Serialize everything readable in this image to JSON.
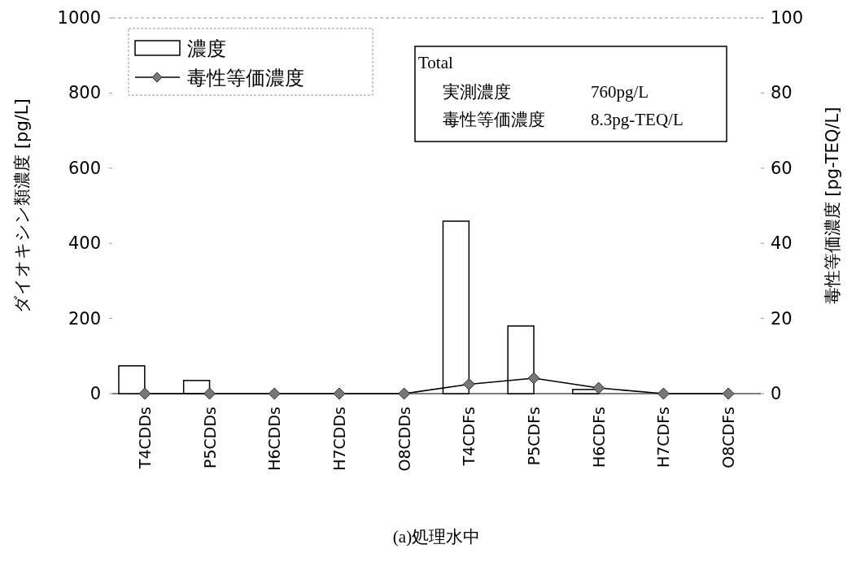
{
  "chart_data": {
    "type": "bar",
    "xlabel": "(a)処理水中",
    "ylabel": "ダイオキシン類濃度 [pg/L]",
    "y2label": "毒性等価濃度 [pg-TEQ/L]",
    "categories": [
      "T4CDDs",
      "P5CDDs",
      "H6CDDs",
      "H7CDDs",
      "O8CDDs",
      "T4CDFs",
      "P5CDFs",
      "H6CDFs",
      "H7CDFs",
      "O8CDFs"
    ],
    "series": [
      {
        "name": "濃度",
        "color": "#ffffff",
        "values": [
          74,
          35,
          0,
          0,
          0,
          459,
          180,
          11,
          0,
          0
        ]
      },
      {
        "name": "毒性等価濃度",
        "type": "line",
        "axis": "y2",
        "color": "#000000",
        "marker": "diamond",
        "values": [
          0,
          0,
          0,
          0,
          0,
          2.5,
          4.1,
          1.5,
          0,
          0
        ]
      }
    ],
    "ylim": [
      0,
      1000
    ],
    "yticks": [
      0,
      200,
      400,
      600,
      800,
      1000
    ],
    "y2lim": [
      0,
      100
    ],
    "y2ticks": [
      0,
      20,
      40,
      60,
      80,
      100
    ],
    "legend": "top left",
    "annotations": [
      "Total",
      "実測濃度",
      "760pg/L",
      "毒性等価濃度",
      "8.3pg-TEQ/L"
    ]
  }
}
